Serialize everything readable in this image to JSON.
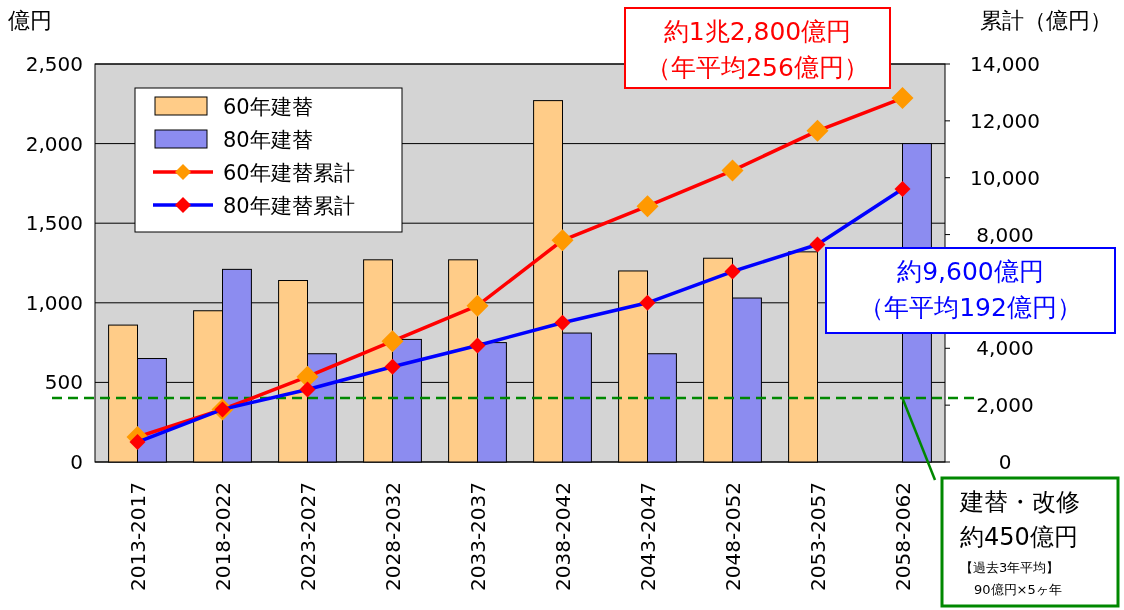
{
  "chart_data": {
    "type": "bar",
    "ylabel": "億円",
    "y2label": "累計（億円）",
    "categories": [
      "2013-2017",
      "2018-2022",
      "2023-2027",
      "2028-2032",
      "2033-2037",
      "2038-2042",
      "2043-2047",
      "2048-2052",
      "2053-2057",
      "2058-2062"
    ],
    "series": [
      {
        "name": "60年建替",
        "color": "#ffcc88",
        "values": [
          860,
          950,
          1140,
          1270,
          1270,
          2270,
          1200,
          1280,
          1320,
          null
        ]
      },
      {
        "name": "80年建替",
        "color": "#8c8cf0",
        "values": [
          650,
          1210,
          680,
          770,
          750,
          810,
          680,
          1030,
          null,
          2000
        ]
      },
      {
        "name": "60年建替累計",
        "type": "line",
        "axis": "y2",
        "color": "#ff0000",
        "colors": [
          "#ff9900",
          "#ff9900",
          "#ff9900",
          "#ff9900",
          "#ff9900",
          "#ff9900",
          "#ff9900",
          "#ff9900",
          "#ff9900",
          "#ff9900"
        ],
        "values": [
          880,
          1850,
          3000,
          4250,
          5500,
          7800,
          9000,
          10250,
          11650,
          12800
        ]
      },
      {
        "name": "80年建替累計",
        "type": "line",
        "axis": "y2",
        "color": "#0000ff",
        "colors": [
          "#ff0000",
          "#ff0000",
          "#ff0000",
          "#ff0000",
          "#ff0000",
          "#ff0000",
          "#ff0000",
          "#ff0000",
          "#ff0000",
          "#ff0000"
        ],
        "values": [
          700,
          1850,
          2550,
          3350,
          4100,
          4900,
          5600,
          6700,
          7650,
          9600
        ]
      }
    ],
    "ylim": [
      0,
      2500
    ],
    "yticks": [
      0,
      500,
      {
        "value": 1000,
        "label": "1,000"
      },
      {
        "value": 1500,
        "label": "1,500"
      },
      {
        "value": 2000,
        "label": "2,000"
      },
      {
        "value": 2500,
        "label": "2,500"
      }
    ],
    "y2lim": [
      0,
      14000
    ],
    "y2ticks": [
      0,
      {
        "value": 2000,
        "label": "2,000"
      },
      {
        "value": 4000,
        "label": "4,000"
      },
      {
        "value": 6000,
        "label": null
      },
      {
        "value": 8000,
        "label": "8,000"
      },
      {
        "value": 10000,
        "label": "10,000"
      },
      {
        "value": 12000,
        "label": "12,000"
      },
      {
        "value": 14000,
        "label": "14,000"
      }
    ],
    "grid": "y",
    "legend": "top left",
    "marker": "diamond",
    "ref_lines": [
      {
        "axis": "y2",
        "value": 2250,
        "color": "#008800",
        "line_style": "dashed"
      }
    ],
    "annotations": [
      "約1兆2,800億円",
      "（年平均256億円）",
      "約9,600億円",
      "（年平均192億円）",
      {
        "text": "建替・改修",
        "x": "2058-2062",
        "y": 400
      },
      "約450億円",
      "【過去3年平均】",
      "90億円×5ヶ年"
    ]
  }
}
